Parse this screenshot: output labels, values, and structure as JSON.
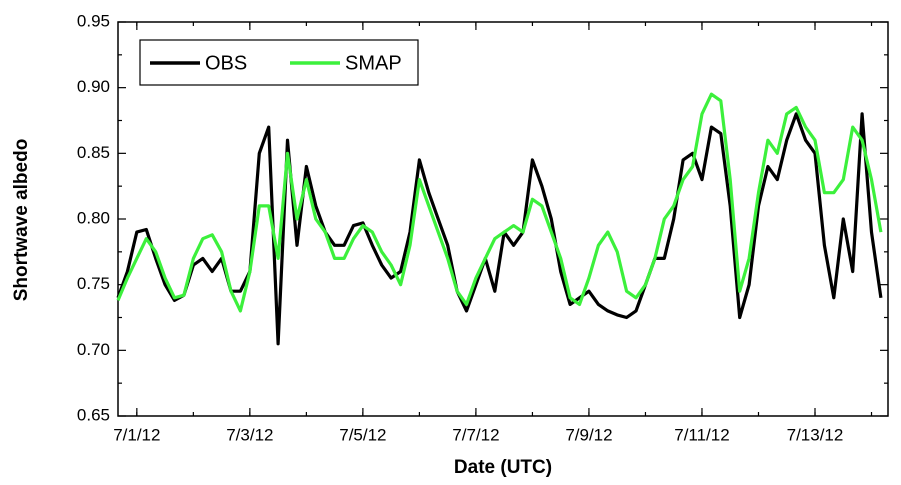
{
  "chart_data": {
    "type": "line",
    "x_label": "Date (UTC)",
    "y_label": "Shortwave albedo",
    "x": [
      "2012-06-30T16:00",
      "2012-06-30T20:00",
      "2012-07-01T00:00",
      "2012-07-01T04:00",
      "2012-07-01T08:00",
      "2012-07-01T12:00",
      "2012-07-01T16:00",
      "2012-07-01T20:00",
      "2012-07-02T00:00",
      "2012-07-02T04:00",
      "2012-07-02T08:00",
      "2012-07-02T12:00",
      "2012-07-02T16:00",
      "2012-07-02T20:00",
      "2012-07-03T00:00",
      "2012-07-03T04:00",
      "2012-07-03T08:00",
      "2012-07-03T12:00",
      "2012-07-03T16:00",
      "2012-07-03T20:00",
      "2012-07-04T00:00",
      "2012-07-04T04:00",
      "2012-07-04T08:00",
      "2012-07-04T12:00",
      "2012-07-04T16:00",
      "2012-07-04T20:00",
      "2012-07-05T00:00",
      "2012-07-05T04:00",
      "2012-07-05T08:00",
      "2012-07-05T12:00",
      "2012-07-05T16:00",
      "2012-07-05T20:00",
      "2012-07-06T00:00",
      "2012-07-06T04:00",
      "2012-07-06T08:00",
      "2012-07-06T12:00",
      "2012-07-06T16:00",
      "2012-07-06T20:00",
      "2012-07-07T00:00",
      "2012-07-07T04:00",
      "2012-07-07T08:00",
      "2012-07-07T12:00",
      "2012-07-07T16:00",
      "2012-07-07T20:00",
      "2012-07-08T00:00",
      "2012-07-08T04:00",
      "2012-07-08T08:00",
      "2012-07-08T12:00",
      "2012-07-08T16:00",
      "2012-07-08T20:00",
      "2012-07-09T00:00",
      "2012-07-09T04:00",
      "2012-07-09T08:00",
      "2012-07-09T12:00",
      "2012-07-09T16:00",
      "2012-07-09T20:00",
      "2012-07-10T00:00",
      "2012-07-10T04:00",
      "2012-07-10T08:00",
      "2012-07-10T12:00",
      "2012-07-10T16:00",
      "2012-07-10T20:00",
      "2012-07-11T00:00",
      "2012-07-11T04:00",
      "2012-07-11T08:00",
      "2012-07-11T12:00",
      "2012-07-11T16:00",
      "2012-07-11T20:00",
      "2012-07-12T00:00",
      "2012-07-12T04:00",
      "2012-07-12T08:00",
      "2012-07-12T12:00",
      "2012-07-12T16:00",
      "2012-07-12T20:00",
      "2012-07-13T00:00",
      "2012-07-13T04:00",
      "2012-07-13T08:00",
      "2012-07-13T12:00",
      "2012-07-13T16:00",
      "2012-07-13T20:00",
      "2012-07-14T00:00",
      "2012-07-14T04:00"
    ],
    "series": [
      {
        "name": "OBS",
        "color": "#000000",
        "values": [
          0.74,
          0.76,
          0.79,
          0.792,
          0.77,
          0.75,
          0.738,
          0.742,
          0.765,
          0.77,
          0.76,
          0.77,
          0.745,
          0.745,
          0.76,
          0.85,
          0.87,
          0.705,
          0.86,
          0.78,
          0.84,
          0.81,
          0.79,
          0.78,
          0.78,
          0.795,
          0.797,
          0.78,
          0.765,
          0.755,
          0.76,
          0.79,
          0.845,
          0.82,
          0.8,
          0.78,
          0.745,
          0.73,
          0.75,
          0.77,
          0.745,
          0.79,
          0.78,
          0.79,
          0.845,
          0.825,
          0.8,
          0.76,
          0.735,
          0.74,
          0.745,
          0.735,
          0.73,
          0.727,
          0.725,
          0.73,
          0.75,
          0.77,
          0.77,
          0.8,
          0.845,
          0.85,
          0.83,
          0.87,
          0.865,
          0.81,
          0.725,
          0.75,
          0.81,
          0.84,
          0.83,
          0.86,
          0.88,
          0.86,
          0.85,
          0.78,
          0.74,
          0.8,
          0.76,
          0.88,
          0.79,
          0.74
        ]
      },
      {
        "name": "SMAP",
        "color": "#3cf03c",
        "values": [
          0.738,
          0.755,
          0.77,
          0.785,
          0.775,
          0.755,
          0.74,
          0.742,
          0.77,
          0.785,
          0.788,
          0.775,
          0.745,
          0.73,
          0.76,
          0.81,
          0.81,
          0.77,
          0.85,
          0.8,
          0.83,
          0.8,
          0.79,
          0.77,
          0.77,
          0.785,
          0.795,
          0.79,
          0.775,
          0.765,
          0.75,
          0.78,
          0.83,
          0.81,
          0.79,
          0.77,
          0.745,
          0.735,
          0.755,
          0.77,
          0.785,
          0.79,
          0.795,
          0.79,
          0.815,
          0.81,
          0.79,
          0.77,
          0.74,
          0.735,
          0.755,
          0.78,
          0.79,
          0.775,
          0.745,
          0.74,
          0.75,
          0.77,
          0.8,
          0.81,
          0.83,
          0.84,
          0.88,
          0.895,
          0.89,
          0.83,
          0.745,
          0.77,
          0.82,
          0.86,
          0.85,
          0.88,
          0.885,
          0.87,
          0.86,
          0.82,
          0.82,
          0.83,
          0.87,
          0.86,
          0.83,
          0.79
        ]
      }
    ],
    "xlim": [
      "2012-06-30T16:00",
      "2012-07-14T07:00"
    ],
    "xticks": [
      {
        "value": "2012-07-01",
        "label": "7/1/12"
      },
      {
        "value": "2012-07-03",
        "label": "7/3/12"
      },
      {
        "value": "2012-07-05",
        "label": "7/5/12"
      },
      {
        "value": "2012-07-07",
        "label": "7/7/12"
      },
      {
        "value": "2012-07-09",
        "label": "7/9/12"
      },
      {
        "value": "2012-07-11",
        "label": "7/11/12"
      },
      {
        "value": "2012-07-13",
        "label": "7/13/12"
      }
    ],
    "ylim": [
      0.65,
      0.95
    ],
    "yticks": [
      0.65,
      {
        "value": 0.7,
        "label": "0.70"
      },
      0.75,
      {
        "value": 0.8,
        "label": "0.80"
      },
      0.85,
      {
        "value": 0.9,
        "label": "0.90"
      },
      0.95
    ],
    "legend": "upper left"
  }
}
